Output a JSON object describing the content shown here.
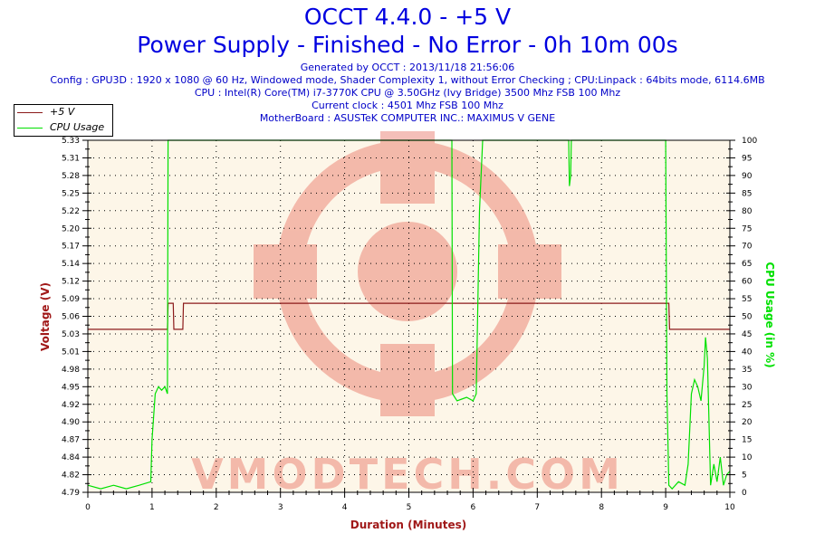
{
  "header": {
    "title_line1": "OCCT 4.4.0 - +5 V",
    "title_line2": "Power Supply - Finished - No Error - 0h 10m 00s",
    "generated": "Generated by OCCT : 2013/11/18 21:56:06",
    "config": "Config : GPU3D : 1920 x 1080 @ 60 Hz, Windowed mode, Shader Complexity 1, without Error Checking ; CPU:Linpack : 64bits mode, 6114.6MB",
    "cpu": "CPU : Intel(R) Core(TM) i7-3770K CPU @ 3.50GHz (Ivy Bridge) 3500 Mhz FSB 100 Mhz",
    "clock": "Current clock : 4501 Mhz FSB 100 Mhz",
    "motherboard": "MotherBoard : ASUSTeK COMPUTER INC.: MAXIMUS V GENE"
  },
  "legend": [
    {
      "label": "+5 V",
      "color": "#8b1a1a"
    },
    {
      "label": "CPU Usage",
      "color": "#00e000"
    }
  ],
  "watermark": "VMODTECH.COM",
  "chart_data": {
    "type": "line",
    "title": "OCCT 4.4.0 - +5 V",
    "subtitle": "Power Supply - Finished - No Error - 0h 10m 00s",
    "xlabel": "Duration (Minutes)",
    "ylabel": "Voltage (V)",
    "y2label": "CPU Usage (in %)",
    "xlim": [
      0,
      10
    ],
    "ylim": [
      4.79,
      5.33
    ],
    "y2lim": [
      0,
      100
    ],
    "x_ticks": [
      "0",
      "1",
      "2",
      "3",
      "4",
      "5",
      "6",
      "7",
      "8",
      "9",
      "10"
    ],
    "y_ticks": [
      "4.79",
      "4.82",
      "4.84",
      "4.87",
      "4.90",
      "4.92",
      "4.95",
      "4.98",
      "5.01",
      "5.03",
      "5.06",
      "5.09",
      "5.12",
      "5.14",
      "5.17",
      "5.20",
      "5.22",
      "5.25",
      "5.28",
      "5.31",
      "5.33"
    ],
    "y2_ticks": [
      "0",
      "5",
      "10",
      "15",
      "20",
      "25",
      "30",
      "35",
      "40",
      "45",
      "50",
      "55",
      "60",
      "65",
      "70",
      "75",
      "80",
      "85",
      "90",
      "95",
      "100"
    ],
    "grid": true,
    "legend_position": "top-left",
    "series": [
      {
        "name": "+5 V",
        "axis": "left",
        "color": "#8b1a1a",
        "x": [
          0,
          1.24,
          1.25,
          1.33,
          1.34,
          1.48,
          1.49,
          9.05,
          9.06,
          10
        ],
        "values": [
          5.04,
          5.04,
          5.08,
          5.08,
          5.04,
          5.04,
          5.08,
          5.08,
          5.04,
          5.04
        ]
      },
      {
        "name": "CPU Usage",
        "axis": "right",
        "color": "#00e000",
        "x": [
          0,
          0.2,
          0.4,
          0.6,
          0.8,
          0.98,
          1.0,
          1.05,
          1.1,
          1.15,
          1.2,
          1.24,
          1.25,
          5.67,
          5.68,
          5.75,
          5.9,
          6.0,
          6.05,
          6.1,
          6.15,
          7.49,
          7.5,
          7.52,
          7.53,
          9.0,
          9.02,
          9.05,
          9.1,
          9.2,
          9.3,
          9.35,
          9.4,
          9.45,
          9.5,
          9.55,
          9.6,
          9.62,
          9.65,
          9.7,
          9.75,
          9.8,
          9.85,
          9.9,
          9.95,
          10
        ],
        "values": [
          2,
          1,
          2,
          1,
          2,
          3,
          15,
          28,
          30,
          29,
          30,
          28,
          100,
          100,
          28,
          26,
          27,
          26,
          28,
          80,
          100,
          100,
          87,
          90,
          100,
          100,
          28,
          2,
          1,
          3,
          2,
          8,
          28,
          32,
          30,
          26,
          36,
          44,
          38,
          2,
          8,
          3,
          10,
          2,
          5,
          6
        ]
      }
    ]
  }
}
